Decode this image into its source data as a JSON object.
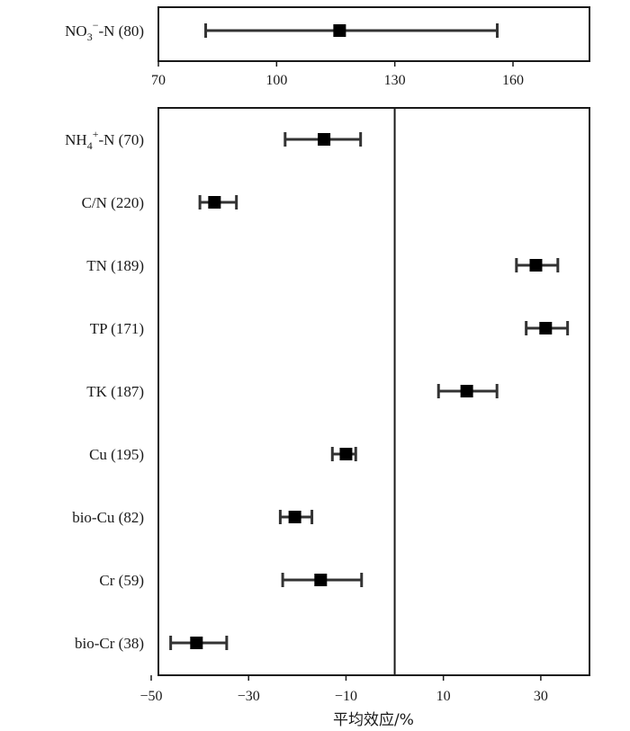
{
  "chart_data": [
    {
      "type": "scatter",
      "title": "",
      "xlabel": "",
      "xlim": [
        70,
        160
      ],
      "x_ticks": [
        "70",
        "100",
        "130",
        "160"
      ],
      "categories": [
        "NO3⁻-N (80)"
      ],
      "series": [
        {
          "values": [
            116
          ],
          "ci_lower": [
            82
          ],
          "ci_upper": [
            156
          ]
        }
      ]
    },
    {
      "type": "scatter",
      "title": "",
      "xlabel": "平均效应/%",
      "xlim": [
        -50,
        40
      ],
      "x_ticks": [
        "−50",
        "−30",
        "−10",
        "10",
        "30"
      ],
      "reference_line_x": 0,
      "categories": [
        "NH4⁺-N (70)",
        "C/N (220)",
        "TN (189)",
        "TP (171)",
        "TK (187)",
        "Cu (195)",
        "bio-Cu (82)",
        "Cr (59)",
        "bio-Cr (38)"
      ],
      "series": [
        {
          "values": [
            -14.5,
            -37.0,
            29.0,
            31.0,
            14.8,
            -10.0,
            -20.5,
            -15.2,
            -40.7
          ],
          "ci_lower": [
            -22.5,
            -40.0,
            25.0,
            27.0,
            9.0,
            -12.8,
            -23.5,
            -23.0,
            -46.0
          ],
          "ci_upper": [
            -7.0,
            -32.5,
            33.5,
            35.5,
            21.0,
            -8.0,
            -17.0,
            -6.8,
            -34.5
          ]
        }
      ]
    }
  ]
}
